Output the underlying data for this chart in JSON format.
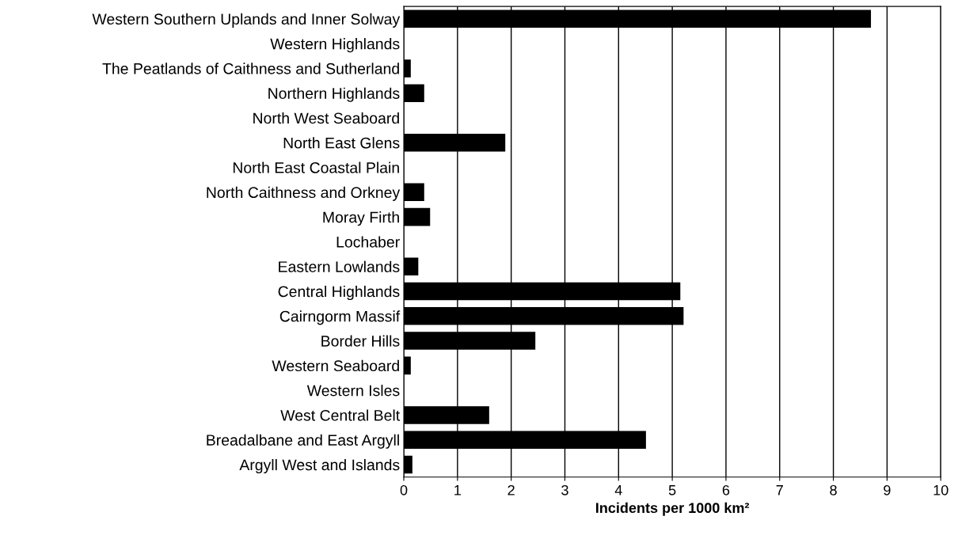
{
  "chart_data": {
    "type": "bar",
    "orientation": "horizontal",
    "xlabel": "Incidents per 1000 km²",
    "categories": [
      "Western Southern Uplands and Inner Solway",
      "Western Highlands",
      "The Peatlands of Caithness and Sutherland",
      "Northern Highlands",
      "North West Seaboard",
      "North East Glens",
      "North East Coastal Plain",
      "North Caithness and Orkney",
      "Moray Firth",
      "Lochaber",
      "Eastern Lowlands",
      "Central Highlands",
      "Cairngorm Massif",
      "Border Hills",
      "Western Seaboard",
      "Western Isles",
      "West Central Belt",
      "Breadalbane and East Argyll",
      "Argyll West and Islands"
    ],
    "values": [
      8.7,
      0,
      0.13,
      0.38,
      0,
      1.89,
      0,
      0.38,
      0.49,
      0,
      0.27,
      5.15,
      5.21,
      2.45,
      0.13,
      0,
      1.59,
      4.51,
      0.16
    ],
    "color": "#000000",
    "xlim": [
      0,
      10
    ],
    "xticks": [
      0,
      1,
      2,
      3,
      4,
      5,
      6,
      7,
      8,
      9,
      10
    ],
    "grid": "x"
  }
}
